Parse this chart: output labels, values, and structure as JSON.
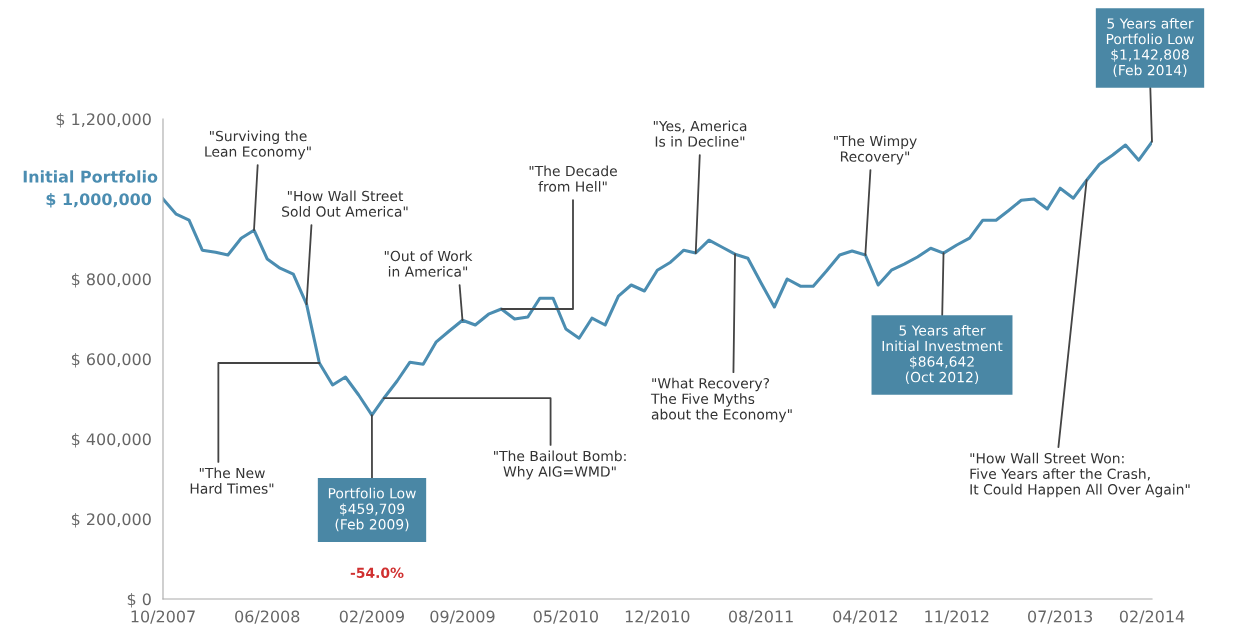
{
  "chart_data": {
    "type": "line",
    "x": [
      "2007-10",
      "2007-11",
      "2007-12",
      "2008-01",
      "2008-02",
      "2008-03",
      "2008-04",
      "2008-05",
      "2008-06",
      "2008-07",
      "2008-08",
      "2008-09",
      "2008-10",
      "2008-11",
      "2008-12",
      "2009-01",
      "2009-02",
      "2009-03",
      "2009-04",
      "2009-05",
      "2009-06",
      "2009-07",
      "2009-08",
      "2009-09",
      "2009-10",
      "2009-11",
      "2009-12",
      "2010-01",
      "2010-02",
      "2010-03",
      "2010-04",
      "2010-05",
      "2010-06",
      "2010-07",
      "2010-08",
      "2010-09",
      "2010-10",
      "2010-11",
      "2010-12",
      "2011-01",
      "2011-02",
      "2011-03",
      "2011-04",
      "2011-05",
      "2011-06",
      "2011-07",
      "2011-08",
      "2011-09",
      "2011-10",
      "2011-11",
      "2011-12",
      "2012-01",
      "2012-02",
      "2012-03",
      "2012-04",
      "2012-05",
      "2012-06",
      "2012-07",
      "2012-08",
      "2012-09",
      "2012-10",
      "2012-11",
      "2012-12",
      "2013-01",
      "2013-02",
      "2013-03",
      "2013-04",
      "2013-05",
      "2013-06",
      "2013-07",
      "2013-08",
      "2013-09",
      "2013-10",
      "2013-11",
      "2013-12",
      "2014-01",
      "2014-02"
    ],
    "series": [
      {
        "color": "#4b8db1",
        "values": [
          1000000,
          962000,
          947000,
          872000,
          867000,
          860000,
          902000,
          922000,
          850000,
          827000,
          812000,
          737000,
          590000,
          535000,
          555000,
          510000,
          459709,
          502000,
          545000,
          592000,
          587000,
          642000,
          670000,
          697000,
          685000,
          712000,
          725000,
          700000,
          705000,
          752000,
          752000,
          675000,
          652000,
          702000,
          685000,
          757000,
          785000,
          770000,
          822000,
          842000,
          872000,
          865000,
          897000,
          880000,
          862000,
          852000,
          790000,
          730000,
          800000,
          782000,
          782000,
          820000,
          860000,
          870000,
          860000,
          785000,
          822000,
          837000,
          855000,
          877000,
          864642,
          885000,
          902000,
          947000,
          947000,
          970000,
          997000,
          1000000,
          975000,
          1027000,
          1002000,
          1047000,
          1087000,
          1110000,
          1135000,
          1097000,
          1142808
        ]
      }
    ],
    "xlim": [
      "2007-10",
      "2014-02"
    ],
    "xticks": [
      {
        "value": "2007-10",
        "label": "10/2007"
      },
      {
        "value": "2008-06",
        "label": "06/2008"
      },
      {
        "value": "2009-02",
        "label": "02/2009"
      },
      {
        "value": "2009-09",
        "label": "09/2009"
      },
      {
        "value": "2010-05",
        "label": "05/2010"
      },
      {
        "value": "2010-12",
        "label": "12/2010"
      },
      {
        "value": "2011-08",
        "label": "08/2011"
      },
      {
        "value": "2012-04",
        "label": "04/2012"
      },
      {
        "value": "2012-11",
        "label": "11/2012"
      },
      {
        "value": "2013-07",
        "label": "07/2013"
      },
      {
        "value": "2014-02",
        "label": "02/2014"
      }
    ],
    "ylim": [
      0,
      1200000
    ],
    "yticks": [
      {
        "value": 0,
        "label": "$ 0"
      },
      {
        "value": 200000,
        "label": "$ 200,000"
      },
      {
        "value": 400000,
        "label": "$ 400,000"
      },
      {
        "value": 600000,
        "label": "$ 600,000"
      },
      {
        "value": 800000,
        "label": "$ 800,000"
      },
      {
        "value": 1000000,
        "label": "$ 1,000,000"
      },
      {
        "value": 1200000,
        "label": "$ 1,200,000"
      }
    ],
    "grid": false,
    "marker": "none",
    "line_style": "solid",
    "annotations": [
      "Initial Portfolio",
      {
        "text": "\"Surviving the\nLean Economy\"",
        "x": "2008-05",
        "y": 922000
      },
      {
        "text": "\"How Wall Street\nSold Out America\"",
        "x": "2008-09",
        "y": 737000
      },
      {
        "text": "\"The New\nHard Times\"",
        "x": "2008-10",
        "y": 590000
      },
      {
        "text": "Portfolio Low\n$459,709\n(Feb 2009)",
        "x": "2009-02",
        "y": 459709
      },
      "-54.0%",
      {
        "text": "\"The Bailout Bomb:\nWhy AIG=WMD\"",
        "x": "2009-03",
        "y": 502000
      },
      {
        "text": "\"Out of Work\nin America\"",
        "x": "2009-09",
        "y": 697000
      },
      {
        "text": "\"The Decade\nfrom Hell\"",
        "x": "2009-12",
        "y": 725000
      },
      {
        "text": "\"Yes, America\nIs in Decline\"",
        "x": "2011-03",
        "y": 865000
      },
      {
        "text": "\"What Recovery?\nThe Five Myths\nabout the Economy\"",
        "x": "2011-06",
        "y": 862000
      },
      {
        "text": "\"The Wimpy\nRecovery\"",
        "x": "2012-04",
        "y": 860000
      },
      {
        "text": "5 Years after\nInitial Investment\n$864,642\n(Oct 2012)",
        "x": "2012-10",
        "y": 864642
      },
      {
        "text": "\"How Wall Street Won:\nFive Years after the Crash,\nIt Could Happen All Over Again\"",
        "x": "2013-09",
        "y": 1047000
      },
      {
        "text": "5 Years after\nPortfolio Low\n$1,142,808\n(Feb 2014)",
        "x": "2014-02",
        "y": 1142808
      }
    ]
  }
}
